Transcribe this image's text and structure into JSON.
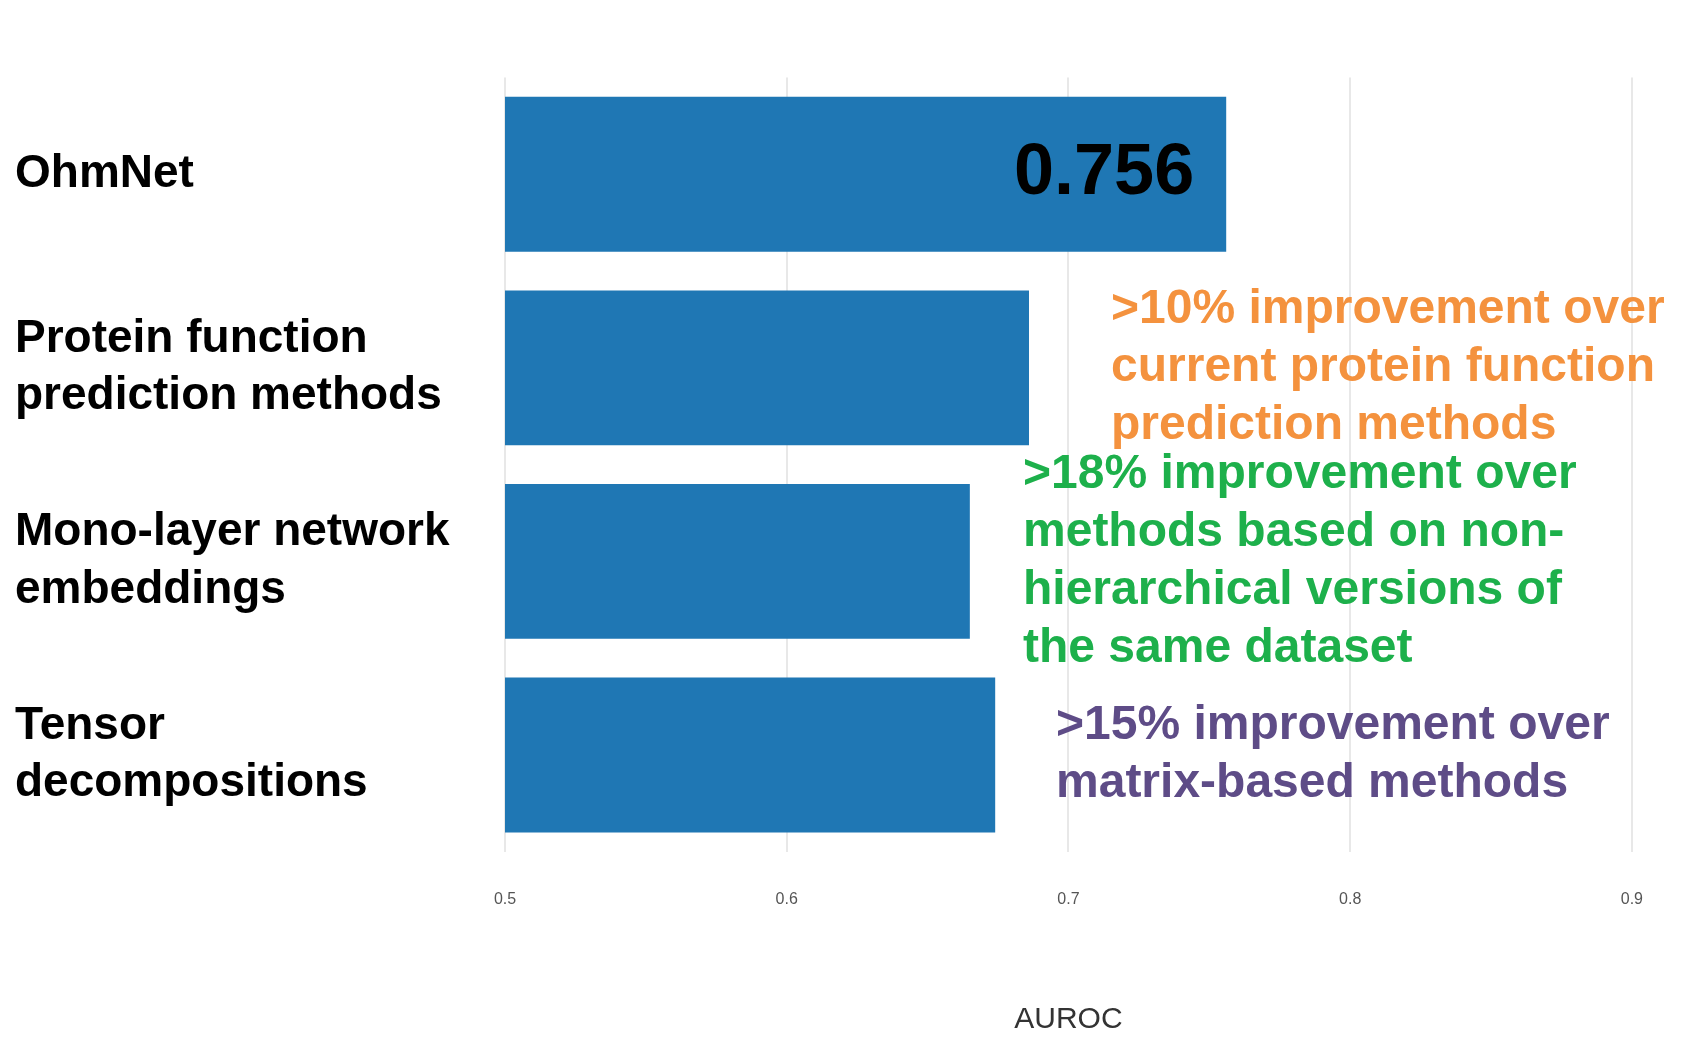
{
  "chart_data": {
    "type": "bar",
    "orientation": "horizontal",
    "categories": [
      "OhmNet",
      "Protein function prediction methods",
      "Mono-layer network embeddings",
      "Tensor decompositions"
    ],
    "values": [
      0.756,
      0.686,
      0.665,
      0.674
    ],
    "color": "#1f77b4",
    "value_labels": [
      "0.756",
      null,
      null,
      null
    ],
    "xlim": [
      0.5,
      0.9
    ],
    "xticks": [
      0.5,
      0.6,
      0.7,
      0.8,
      0.9
    ],
    "xlabel": "AUROC",
    "grid": "x",
    "legend": false,
    "annotations": [
      ">10% improvement over current protein function prediction methods",
      ">18% improvement over methods based on non-hierarchical versions of the same dataset",
      ">15% improvement over matrix-based methods"
    ]
  }
}
